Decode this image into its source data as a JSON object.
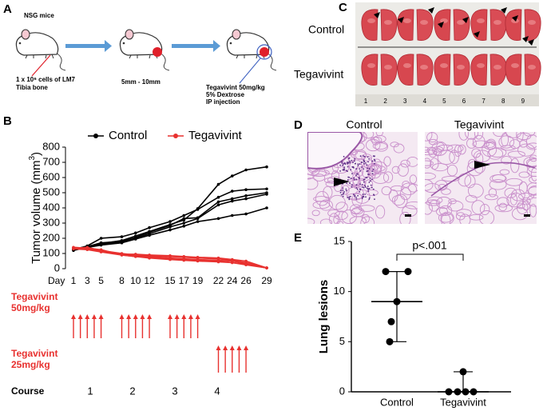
{
  "panel_labels": [
    "A",
    "B",
    "C",
    "D",
    "E"
  ],
  "panel_a": {
    "mouse_label": "NSG mice",
    "injection": [
      "1 x 10⁶ cells of LM7",
      "Tibia bone"
    ],
    "tumor_size": "5mm - 10mm",
    "treatment": [
      "Tegavivint 50mg/kg",
      "5% Dextrose",
      "IP injection"
    ]
  },
  "chart_data": [
    {
      "type": "multiline",
      "ylabel": [
        "Tumor volume (mm",
        "3",
        ")"
      ],
      "x_label": "Day",
      "x": [
        1,
        3,
        5,
        8,
        10,
        12,
        15,
        17,
        19,
        22,
        24,
        26,
        29
      ],
      "xlim": [
        1,
        29
      ],
      "xticks": [
        1,
        3,
        5,
        8,
        10,
        12,
        15,
        17,
        19,
        22,
        24,
        26,
        29
      ],
      "ylim": [
        0,
        800
      ],
      "yticks": [
        0,
        100,
        200,
        300,
        400,
        500,
        600,
        700,
        800
      ],
      "series": [
        {
          "name": "Control",
          "color": "#000000",
          "values": [
            [
              120,
              140,
              165,
              185,
              215,
              245,
              290,
              320,
              395,
              555,
              610,
              650,
              670
            ],
            [
              125,
              150,
              200,
              210,
              235,
              270,
              310,
              350,
              390,
              470,
              510,
              520,
              525
            ],
            [
              130,
              145,
              170,
              180,
              205,
              240,
              285,
              330,
              335,
              440,
              460,
              480,
              500
            ],
            [
              130,
              140,
              160,
              175,
              200,
              230,
              275,
              300,
              330,
              420,
              445,
              460,
              490
            ],
            [
              125,
              140,
              155,
              170,
              195,
              220,
              255,
              280,
              310,
              330,
              350,
              360,
              400
            ]
          ]
        },
        {
          "name": "Tegavivint",
          "color": "#e8312f",
          "values": [
            [
              140,
              135,
              120,
              100,
              90,
              85,
              80,
              75,
              70,
              65,
              55,
              40,
              5
            ],
            [
              135,
              130,
              115,
              95,
              85,
              80,
              70,
              65,
              60,
              55,
              50,
              35,
              5
            ],
            [
              130,
              125,
              110,
              90,
              80,
              70,
              60,
              55,
              50,
              45,
              40,
              30,
              5
            ],
            [
              140,
              135,
              125,
              90,
              80,
              75,
              65,
              60,
              55,
              50,
              40,
              25,
              5
            ],
            [
              135,
              140,
              120,
              95,
              95,
              90,
              85,
              80,
              75,
              70,
              60,
              50,
              5
            ]
          ]
        }
      ],
      "dosing": [
        {
          "label": [
            "Tegavivint",
            "50mg/kg"
          ],
          "days": [
            1,
            2,
            3,
            4,
            5,
            8,
            9,
            10,
            11,
            12,
            15,
            16,
            17,
            18,
            19
          ]
        },
        {
          "label": [
            "Tegavivint",
            "25mg/kg"
          ],
          "days": [
            22,
            23,
            24,
            25,
            26
          ]
        }
      ],
      "course": {
        "label": "Course",
        "values": [
          "1",
          "2",
          "3",
          "4"
        ]
      }
    },
    {
      "type": "dot",
      "ylabel": "Lung lesions",
      "categories": [
        "Control",
        "Tegavivint"
      ],
      "values": [
        [
          12,
          12,
          9,
          7,
          5
        ],
        [
          2,
          0,
          0,
          0,
          0
        ]
      ],
      "medians": [
        9,
        0
      ],
      "ranges": [
        [
          5,
          12
        ],
        [
          0,
          2
        ]
      ],
      "ylim": [
        0,
        15
      ],
      "yticks": [
        0,
        5,
        10,
        15
      ],
      "annotation": "p<.001",
      "color": "#000000"
    }
  ],
  "panel_c": {
    "row_labels": [
      "Control",
      "Tegavivint"
    ],
    "ruler": [
      1,
      2,
      3,
      4,
      5,
      6,
      7,
      8,
      9
    ]
  },
  "panel_d": {
    "labels": [
      "Control",
      "Tegavivint"
    ]
  }
}
